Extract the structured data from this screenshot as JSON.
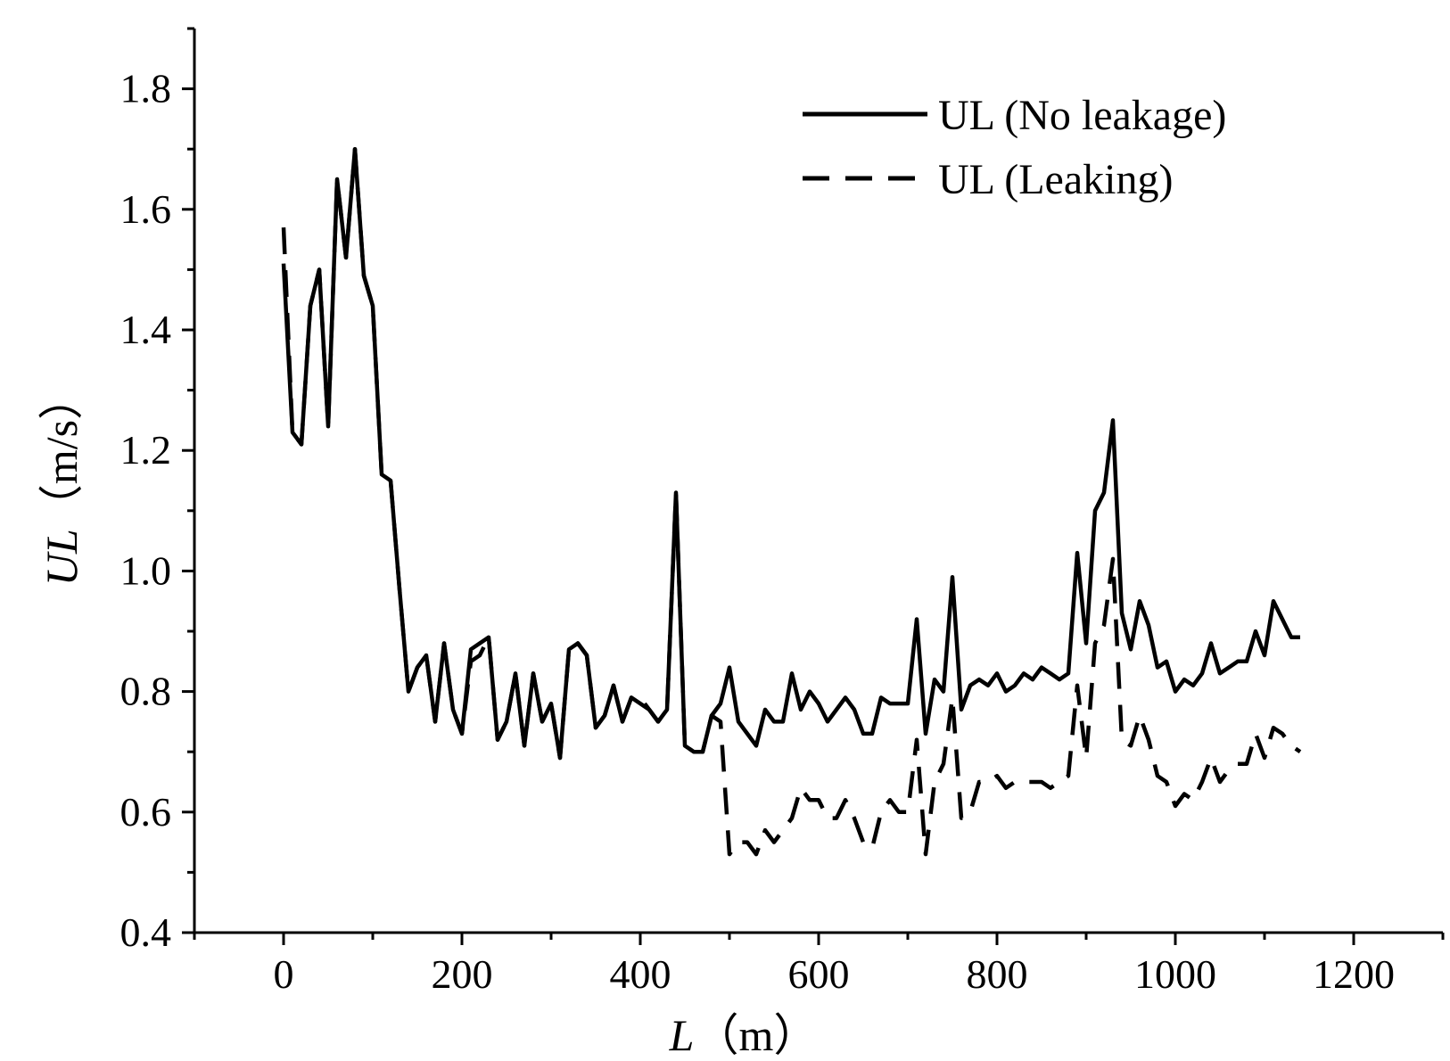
{
  "chart_data": {
    "type": "line",
    "xlabel": "L（m）",
    "xlabel_italic": "L",
    "xlabel_unit": "（m）",
    "ylabel": "UL（m/s）",
    "ylabel_italic": "UL",
    "ylabel_unit": "（m/s）",
    "xlim": [
      -100,
      1300
    ],
    "ylim": [
      0.4,
      1.9
    ],
    "xticks": [
      0,
      200,
      400,
      600,
      800,
      1000,
      1200
    ],
    "xtick_labels": [
      "0",
      "200",
      "400",
      "600",
      "800",
      "1000",
      "1200"
    ],
    "yticks": [
      0.4,
      0.6,
      0.8,
      1.0,
      1.2,
      1.4,
      1.6,
      1.8
    ],
    "ytick_labels": [
      "0.4",
      "0.6",
      "0.8",
      "1.0",
      "1.2",
      "1.4",
      "1.6",
      "1.8"
    ],
    "grid": false,
    "legend_position": "top-right",
    "series": [
      {
        "name": "UL (No leakage)",
        "style": "solid",
        "color": "#000000",
        "x": [
          0,
          10,
          20,
          30,
          40,
          50,
          60,
          70,
          80,
          90,
          100,
          110,
          120,
          130,
          140,
          150,
          160,
          170,
          180,
          190,
          200,
          210,
          220,
          230,
          240,
          250,
          260,
          270,
          280,
          290,
          300,
          310,
          320,
          330,
          340,
          350,
          360,
          370,
          380,
          390,
          400,
          410,
          420,
          430,
          440,
          450,
          460,
          470,
          480,
          490,
          500,
          510,
          520,
          530,
          540,
          550,
          560,
          570,
          580,
          590,
          600,
          610,
          620,
          630,
          640,
          650,
          660,
          670,
          680,
          690,
          700,
          710,
          720,
          730,
          740,
          750,
          760,
          770,
          780,
          790,
          800,
          810,
          820,
          830,
          840,
          850,
          860,
          870,
          880,
          890,
          900,
          910,
          920,
          930,
          940,
          950,
          960,
          970,
          980,
          990,
          1000,
          1010,
          1020,
          1030,
          1040,
          1050,
          1060,
          1070,
          1080,
          1090,
          1100,
          1110,
          1120,
          1130,
          1140
        ],
        "values": [
          1.51,
          1.23,
          1.21,
          1.44,
          1.5,
          1.24,
          1.65,
          1.52,
          1.7,
          1.49,
          1.44,
          1.16,
          1.15,
          0.97,
          0.8,
          0.84,
          0.86,
          0.75,
          0.88,
          0.77,
          0.73,
          0.87,
          0.88,
          0.89,
          0.72,
          0.75,
          0.83,
          0.71,
          0.83,
          0.75,
          0.78,
          0.69,
          0.87,
          0.88,
          0.86,
          0.74,
          0.76,
          0.81,
          0.75,
          0.79,
          0.78,
          0.77,
          0.75,
          0.77,
          1.13,
          0.71,
          0.7,
          0.7,
          0.76,
          0.78,
          0.84,
          0.75,
          0.73,
          0.71,
          0.77,
          0.75,
          0.75,
          0.83,
          0.77,
          0.8,
          0.78,
          0.75,
          0.77,
          0.79,
          0.77,
          0.73,
          0.73,
          0.79,
          0.78,
          0.78,
          0.78,
          0.92,
          0.73,
          0.82,
          0.8,
          0.99,
          0.77,
          0.81,
          0.82,
          0.81,
          0.83,
          0.8,
          0.81,
          0.83,
          0.82,
          0.84,
          0.83,
          0.82,
          0.83,
          1.03,
          0.88,
          1.1,
          1.13,
          1.25,
          0.93,
          0.87,
          0.95,
          0.91,
          0.84,
          0.85,
          0.8,
          0.82,
          0.81,
          0.83,
          0.88,
          0.83,
          0.84,
          0.85,
          0.85,
          0.9,
          0.86,
          0.95,
          0.92,
          0.89,
          0.89
        ]
      },
      {
        "name": "UL (Leaking)",
        "style": "dashed",
        "color": "#000000",
        "x": [
          0,
          10,
          20,
          30,
          40,
          50,
          60,
          70,
          80,
          90,
          100,
          110,
          120,
          130,
          140,
          150,
          160,
          170,
          180,
          190,
          200,
          210,
          220,
          230,
          240,
          250,
          260,
          270,
          280,
          290,
          300,
          310,
          320,
          330,
          340,
          350,
          360,
          370,
          380,
          390,
          400,
          410,
          420,
          430,
          440,
          450,
          460,
          470,
          480,
          490,
          500,
          510,
          520,
          530,
          540,
          550,
          560,
          570,
          580,
          590,
          600,
          610,
          620,
          630,
          640,
          650,
          660,
          670,
          680,
          690,
          700,
          710,
          720,
          730,
          740,
          750,
          760,
          770,
          780,
          790,
          800,
          810,
          820,
          830,
          840,
          850,
          860,
          870,
          880,
          890,
          900,
          910,
          920,
          930,
          940,
          950,
          960,
          970,
          980,
          990,
          1000,
          1010,
          1020,
          1030,
          1040,
          1050,
          1060,
          1070,
          1080,
          1090,
          1100,
          1110,
          1120,
          1130,
          1140
        ],
        "values": [
          1.57,
          1.23,
          1.21,
          1.44,
          1.5,
          1.24,
          1.65,
          1.52,
          1.7,
          1.49,
          1.44,
          1.16,
          1.15,
          0.97,
          0.8,
          0.84,
          0.86,
          0.75,
          0.88,
          0.77,
          0.73,
          0.85,
          0.86,
          0.89,
          0.72,
          0.75,
          0.83,
          0.71,
          0.83,
          0.75,
          0.78,
          0.69,
          0.87,
          0.88,
          0.86,
          0.74,
          0.76,
          0.81,
          0.75,
          0.79,
          0.79,
          0.77,
          0.75,
          0.77,
          1.13,
          0.71,
          0.7,
          0.7,
          0.76,
          0.75,
          0.53,
          0.55,
          0.55,
          0.53,
          0.57,
          0.55,
          0.57,
          0.59,
          0.64,
          0.62,
          0.62,
          0.59,
          0.59,
          0.62,
          0.59,
          0.55,
          0.54,
          0.6,
          0.62,
          0.6,
          0.6,
          0.72,
          0.53,
          0.65,
          0.68,
          0.79,
          0.59,
          0.6,
          0.65,
          0.65,
          0.66,
          0.64,
          0.65,
          0.65,
          0.65,
          0.65,
          0.64,
          0.65,
          0.66,
          0.81,
          0.69,
          0.88,
          0.91,
          1.02,
          0.72,
          0.71,
          0.76,
          0.72,
          0.66,
          0.65,
          0.61,
          0.63,
          0.62,
          0.65,
          0.69,
          0.65,
          0.67,
          0.68,
          0.68,
          0.73,
          0.69,
          0.74,
          0.73,
          0.71,
          0.7
        ]
      }
    ]
  }
}
